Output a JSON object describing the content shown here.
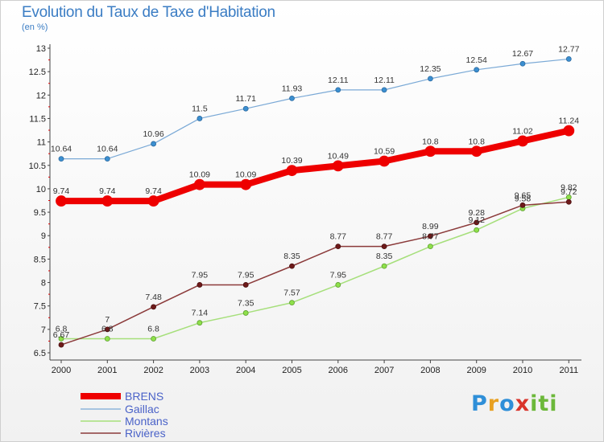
{
  "title": "Evolution du Taux de Taxe d'Habitation",
  "unit": "(en %)",
  "logo": {
    "text": "Proxiti"
  },
  "chart_data": {
    "type": "line",
    "x": [
      "2000",
      "2001",
      "2002",
      "2003",
      "2004",
      "2005",
      "2006",
      "2007",
      "2008",
      "2009",
      "2010",
      "2011"
    ],
    "ylim": [
      6.5,
      13
    ],
    "yticks": [
      6.5,
      7,
      7.5,
      8,
      8.5,
      9,
      9.5,
      10,
      10.5,
      11,
      11.5,
      12,
      12.5,
      13
    ],
    "grid": false,
    "legend": "bottom-left",
    "series": [
      {
        "name": "BRENS",
        "color": "#ee0000",
        "values": [
          9.74,
          9.74,
          9.74,
          10.09,
          10.09,
          10.39,
          10.49,
          10.59,
          10.8,
          10.8,
          11.02,
          11.24
        ]
      },
      {
        "name": "Gaillac",
        "color": "#7aa9d6",
        "values": [
          10.64,
          10.64,
          10.96,
          11.5,
          11.71,
          11.93,
          12.11,
          12.11,
          12.35,
          12.54,
          12.67,
          12.77
        ]
      },
      {
        "name": "Montans",
        "color": "#a6df7b",
        "values": [
          6.8,
          6.8,
          6.8,
          7.14,
          7.35,
          7.57,
          7.95,
          8.35,
          8.77,
          9.12,
          9.58,
          9.82
        ]
      },
      {
        "name": "Rivières",
        "color": "#8b3a3a",
        "values": [
          6.67,
          7,
          7.48,
          7.95,
          7.95,
          8.35,
          8.77,
          8.77,
          8.99,
          9.28,
          9.65,
          9.72
        ]
      }
    ]
  }
}
